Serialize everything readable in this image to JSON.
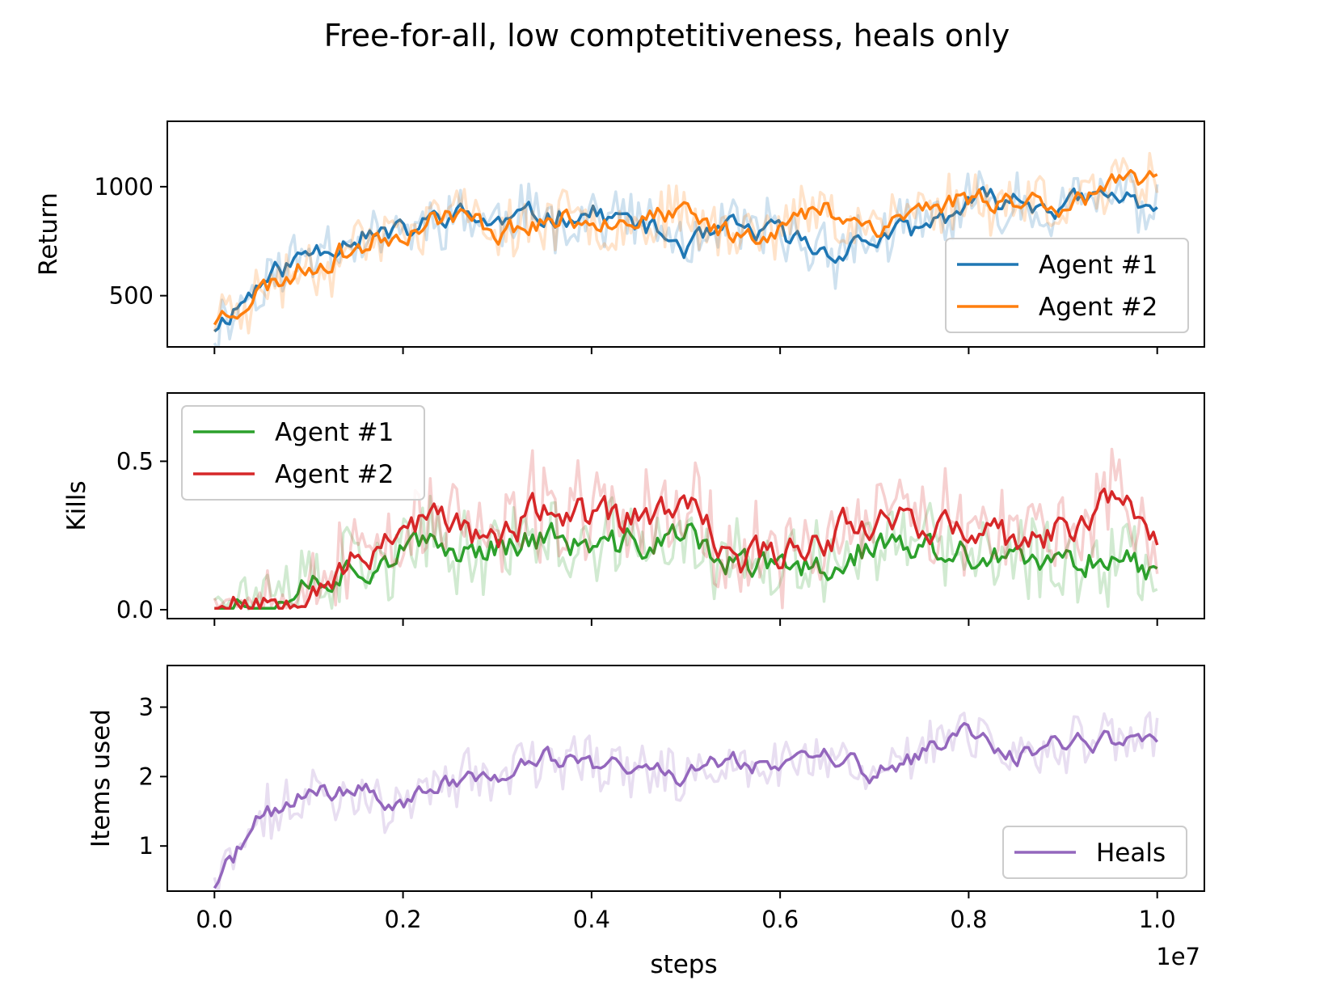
{
  "figure": {
    "title": "Free-for-all, low comptetitiveness, heals only",
    "xlabel": "steps",
    "x_offset_text": "1e7"
  },
  "colors": {
    "tab_blue": "#1f77b4",
    "tab_orange": "#ff7f0e",
    "tab_green": "#2ca02c",
    "tab_red": "#d62728",
    "tab_purple": "#9467bd"
  },
  "chart_data": [
    {
      "type": "line",
      "ylabel": "Return",
      "xlim": [
        -0.05,
        1.05
      ],
      "ylim": [
        265,
        1300
      ],
      "xticks": [
        0.0,
        0.2,
        0.4,
        0.6,
        0.8,
        1.0
      ],
      "xtick_labels": [
        "0.0",
        "0.2",
        "0.4",
        "0.6",
        "0.8",
        "1.0"
      ],
      "yticks": [
        500,
        1000
      ],
      "ytick_labels": [
        "500",
        "1000"
      ],
      "legend": "bottom-right",
      "x_knots": [
        0.0,
        0.05,
        0.1,
        0.15,
        0.2,
        0.25,
        0.3,
        0.35,
        0.4,
        0.45,
        0.5,
        0.55,
        0.6,
        0.65,
        0.7,
        0.75,
        0.8,
        0.85,
        0.9,
        0.95,
        1.0
      ],
      "series": [
        {
          "name": "Agent #1",
          "color": "#1f77b4",
          "noise": 45,
          "raw_noise": 120,
          "seed": 11,
          "values": [
            360,
            560,
            700,
            780,
            780,
            880,
            830,
            870,
            880,
            830,
            720,
            800,
            780,
            700,
            760,
            800,
            920,
            940,
            910,
            950,
            920
          ]
        },
        {
          "name": "Agent #2",
          "color": "#ff7f0e",
          "noise": 45,
          "raw_noise": 120,
          "seed": 23,
          "values": [
            390,
            530,
            640,
            720,
            800,
            880,
            800,
            840,
            860,
            860,
            860,
            780,
            820,
            900,
            820,
            900,
            950,
            940,
            930,
            990,
            1020
          ]
        }
      ]
    },
    {
      "type": "line",
      "ylabel": "Kills",
      "xlim": [
        -0.05,
        1.05
      ],
      "ylim": [
        -0.03,
        0.73
      ],
      "xticks": [
        0.0,
        0.2,
        0.4,
        0.6,
        0.8,
        1.0
      ],
      "xtick_labels": [
        "0.0",
        "0.2",
        "0.4",
        "0.6",
        "0.8",
        "1.0"
      ],
      "yticks": [
        0.0,
        0.5
      ],
      "ytick_labels": [
        "0.0",
        "0.5"
      ],
      "legend": "top-left",
      "x_knots": [
        0.0,
        0.05,
        0.1,
        0.15,
        0.2,
        0.25,
        0.3,
        0.35,
        0.4,
        0.45,
        0.5,
        0.55,
        0.6,
        0.65,
        0.7,
        0.75,
        0.8,
        0.85,
        0.9,
        0.95,
        1.0
      ],
      "series": [
        {
          "name": "Agent #1",
          "color": "#2ca02c",
          "noise": 0.045,
          "raw_noise": 0.13,
          "seed": 37,
          "values": [
            0.02,
            0.02,
            0.1,
            0.15,
            0.2,
            0.2,
            0.22,
            0.25,
            0.2,
            0.22,
            0.25,
            0.15,
            0.13,
            0.15,
            0.22,
            0.2,
            0.18,
            0.15,
            0.15,
            0.2,
            0.12
          ]
        },
        {
          "name": "Agent #2",
          "color": "#d62728",
          "noise": 0.05,
          "raw_noise": 0.15,
          "seed": 53,
          "values": [
            0.02,
            0.02,
            0.1,
            0.15,
            0.3,
            0.3,
            0.22,
            0.35,
            0.3,
            0.3,
            0.35,
            0.15,
            0.2,
            0.25,
            0.32,
            0.3,
            0.25,
            0.22,
            0.25,
            0.4,
            0.25
          ]
        }
      ]
    },
    {
      "type": "line",
      "ylabel": "Items used",
      "xlim": [
        -0.05,
        1.05
      ],
      "ylim": [
        0.35,
        3.6
      ],
      "xticks": [
        0.0,
        0.2,
        0.4,
        0.6,
        0.8,
        1.0
      ],
      "xtick_labels": [
        "0.0",
        "0.2",
        "0.4",
        "0.6",
        "0.8",
        "1.0"
      ],
      "yticks": [
        1,
        2,
        3
      ],
      "ytick_labels": [
        "1",
        "2",
        "3"
      ],
      "legend": "bottom-right",
      "x_knots": [
        0.0,
        0.05,
        0.1,
        0.15,
        0.2,
        0.25,
        0.3,
        0.35,
        0.4,
        0.45,
        0.5,
        0.55,
        0.6,
        0.65,
        0.7,
        0.75,
        0.8,
        0.85,
        0.9,
        0.95,
        1.0
      ],
      "series": [
        {
          "name": "Heals",
          "color": "#9467bd",
          "noise": 0.12,
          "raw_noise": 0.35,
          "seed": 71,
          "values": [
            0.45,
            1.4,
            1.75,
            1.8,
            1.6,
            1.95,
            2.0,
            2.25,
            2.2,
            2.1,
            2.0,
            2.3,
            2.1,
            2.3,
            2.05,
            2.3,
            2.65,
            2.3,
            2.5,
            2.5,
            2.45
          ]
        }
      ]
    }
  ]
}
